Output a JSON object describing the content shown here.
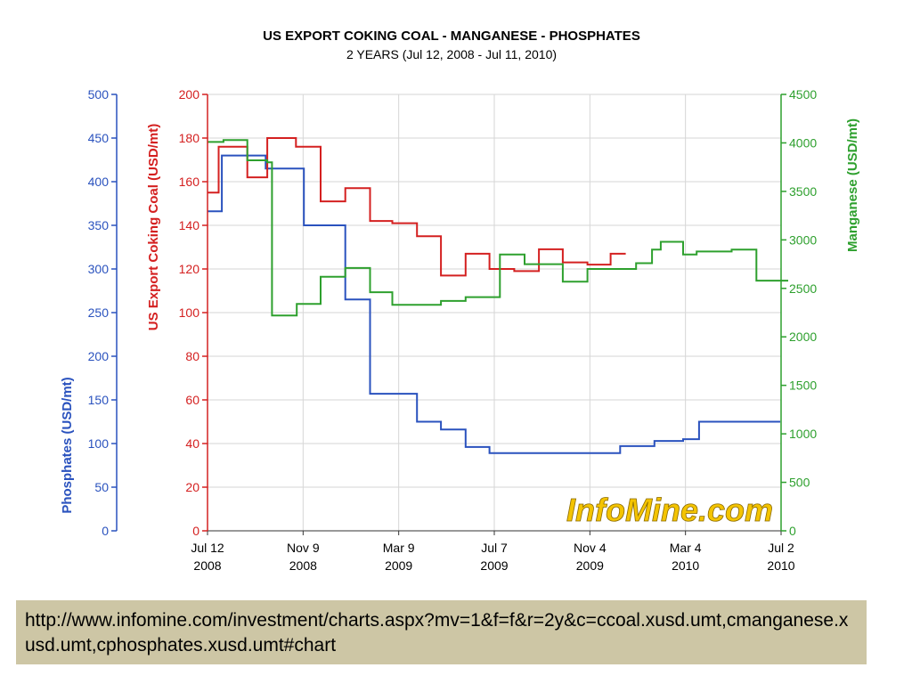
{
  "chart_data": {
    "type": "line",
    "step": true,
    "title": "US EXPORT COKING COAL - MANGANESE - PHOSPHATES",
    "subtitle": "2 YEARS (Jul 12, 2008 - Jul 11, 2010)",
    "x_ticks": [
      {
        "date": "2008-07-12",
        "line1": "Jul 12",
        "line2": "2008"
      },
      {
        "date": "2008-11-09",
        "line1": "Nov 9",
        "line2": "2008"
      },
      {
        "date": "2009-03-09",
        "line1": "Mar 9",
        "line2": "2009"
      },
      {
        "date": "2009-07-07",
        "line1": "Jul 7",
        "line2": "2009"
      },
      {
        "date": "2009-11-04",
        "line1": "Nov 4",
        "line2": "2009"
      },
      {
        "date": "2010-03-04",
        "line1": "Mar 4",
        "line2": "2010"
      },
      {
        "date": "2010-07-02",
        "line1": "Jul 2",
        "line2": "2010"
      }
    ],
    "x_range": [
      "2008-07-12",
      "2010-07-02"
    ],
    "grid": true,
    "axes": {
      "phosphates": {
        "label": "Phosphates (USD/mt)",
        "min": 0,
        "max": 500,
        "ticks": [
          0,
          50,
          100,
          150,
          200,
          250,
          300,
          350,
          400,
          450,
          500
        ],
        "color": "#2a52be"
      },
      "coal": {
        "label": "US Export Coking Coal (USD/mt)",
        "min": 0,
        "max": 200,
        "ticks": [
          0,
          20,
          40,
          60,
          80,
          100,
          120,
          140,
          160,
          180,
          200
        ],
        "color": "#d42020"
      },
      "manganese": {
        "label": "Manganese (USD/mt)",
        "min": 0,
        "max": 4500,
        "ticks": [
          0,
          500,
          1000,
          1500,
          2000,
          2500,
          3000,
          3500,
          4000,
          4500
        ],
        "color": "#2ea02e"
      }
    },
    "series": [
      {
        "axis": "phosphates",
        "color": "#2a52be",
        "points": [
          [
            "2008-07-12",
            366
          ],
          [
            "2008-07-30",
            430
          ],
          [
            "2008-09-23",
            415
          ],
          [
            "2008-11-10",
            350
          ],
          [
            "2009-01-01",
            265
          ],
          [
            "2009-02-01",
            157
          ],
          [
            "2009-04-01",
            125
          ],
          [
            "2009-05-01",
            116
          ],
          [
            "2009-06-01",
            96
          ],
          [
            "2009-07-01",
            89
          ],
          [
            "2009-12-12",
            97
          ],
          [
            "2010-01-24",
            103
          ],
          [
            "2010-03-01",
            105
          ],
          [
            "2010-03-21",
            125
          ],
          [
            "2010-07-01",
            125
          ]
        ]
      },
      {
        "axis": "coal",
        "color": "#d42020",
        "points": [
          [
            "2008-07-12",
            155
          ],
          [
            "2008-07-26",
            176
          ],
          [
            "2008-08-31",
            162
          ],
          [
            "2008-09-25",
            180
          ],
          [
            "2008-10-31",
            176
          ],
          [
            "2008-12-01",
            151
          ],
          [
            "2009-01-01",
            157
          ],
          [
            "2009-02-01",
            142
          ],
          [
            "2009-03-01",
            141
          ],
          [
            "2009-04-01",
            135
          ],
          [
            "2009-05-01",
            117
          ],
          [
            "2009-06-01",
            127
          ],
          [
            "2009-07-01",
            120
          ],
          [
            "2009-08-01",
            119
          ],
          [
            "2009-09-01",
            129
          ],
          [
            "2009-10-01",
            123
          ],
          [
            "2009-11-01",
            122
          ],
          [
            "2009-11-30",
            127
          ],
          [
            "2009-12-19",
            127
          ]
        ]
      },
      {
        "axis": "manganese",
        "color": "#2ea02e",
        "points": [
          [
            "2008-07-12",
            4010
          ],
          [
            "2008-08-01",
            4030
          ],
          [
            "2008-08-31",
            3820
          ],
          [
            "2008-09-25",
            3800
          ],
          [
            "2008-10-01",
            2220
          ],
          [
            "2008-11-01",
            2340
          ],
          [
            "2008-12-01",
            2620
          ],
          [
            "2009-01-01",
            2710
          ],
          [
            "2009-02-01",
            2460
          ],
          [
            "2009-03-01",
            2330
          ],
          [
            "2009-04-01",
            2330
          ],
          [
            "2009-05-01",
            2370
          ],
          [
            "2009-06-01",
            2410
          ],
          [
            "2009-07-14",
            2850
          ],
          [
            "2009-08-14",
            2750
          ],
          [
            "2009-10-01",
            2570
          ],
          [
            "2009-11-01",
            2700
          ],
          [
            "2009-12-01",
            2700
          ],
          [
            "2010-01-01",
            2760
          ],
          [
            "2010-01-21",
            2900
          ],
          [
            "2010-02-01",
            2980
          ],
          [
            "2010-03-01",
            2850
          ],
          [
            "2010-03-18",
            2880
          ],
          [
            "2010-05-01",
            2900
          ],
          [
            "2010-06-01",
            2580
          ],
          [
            "2010-07-11",
            2580
          ]
        ]
      }
    ],
    "watermark": "InfoMine.com"
  },
  "footer": {
    "url": "http://www.infomine.com/investment/charts.aspx?mv=1&f=f&r=2y&c=ccoal.xusd.umt,cmanganese.xusd.umt,cphosphates.xusd.umt#chart"
  }
}
